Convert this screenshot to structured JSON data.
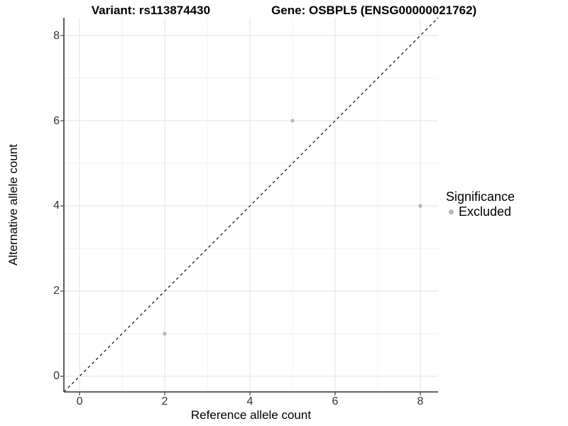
{
  "header": {
    "variant_title": "Variant: rs113874430",
    "gene_title": "Gene: OSBPL5 (ENSG00000021762)"
  },
  "legend": {
    "title": "Significance",
    "items": [
      {
        "label": "Excluded",
        "color": "#b9b9b9"
      }
    ]
  },
  "chart_data": {
    "type": "scatter",
    "title": "Variant: rs113874430 | Gene: OSBPL5 (ENSG00000021762)",
    "xlabel": "Reference allele count",
    "ylabel": "Alternative allele count",
    "xlim": [
      -0.367,
      8.417
    ],
    "ylim": [
      -0.367,
      8.417
    ],
    "x_ticks": [
      0,
      2,
      4,
      6,
      8
    ],
    "y_ticks": [
      0,
      2,
      4,
      6,
      8
    ],
    "x_minor_ticks": [
      1,
      3,
      5,
      7
    ],
    "y_minor_ticks": [
      1,
      3,
      5,
      7
    ],
    "grid": "major+minor",
    "legend_position": "right",
    "series": [
      {
        "name": "Excluded",
        "color": "#b9b9b9",
        "marker": "circle",
        "points": [
          [
            2,
            1
          ],
          [
            5,
            6
          ],
          [
            8,
            4
          ]
        ]
      }
    ],
    "reference_line": {
      "type": "identity",
      "slope": 1,
      "intercept": 0,
      "style": "dashed",
      "color": "#1a1a1a"
    }
  },
  "colors": {
    "background": "#ffffff",
    "grid_major": "#e6e6e6",
    "grid_minor": "#f2f2f2",
    "axis_line": "#4d4d4d",
    "tick_label": "#333333",
    "point": "#b9b9b9"
  }
}
